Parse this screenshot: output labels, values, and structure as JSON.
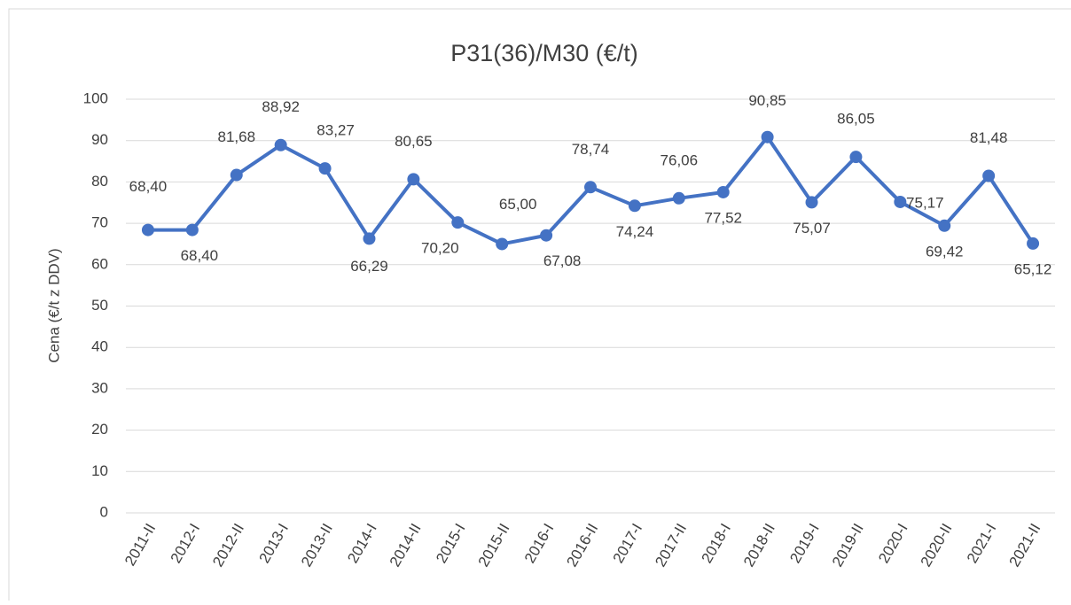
{
  "chart_data": {
    "type": "line",
    "title": "P31(36)/M30 (€/t)",
    "y_label": "Cena (€/t z DDV)",
    "categories": [
      "2011-II",
      "2012-I",
      "2012-II",
      "2013-I",
      "2013-II",
      "2014-I",
      "2014-II",
      "2015-I",
      "2015-II",
      "2016-I",
      "2016-II",
      "2017-I",
      "2017-II",
      "2018-I",
      "2018-II",
      "2019-I",
      "2019-II",
      "2020-I",
      "2020-II",
      "2021-I",
      "2021-II"
    ],
    "series": [
      {
        "name": "P31(36)/M30",
        "color": "#4472c4",
        "values": [
          68.4,
          68.4,
          81.68,
          88.92,
          83.27,
          66.29,
          80.65,
          70.2,
          65.0,
          67.08,
          78.74,
          74.24,
          76.06,
          77.52,
          90.85,
          75.07,
          86.05,
          75.17,
          69.42,
          81.48,
          65.12
        ],
        "value_labels": [
          "68,40",
          "68,40",
          "81,68",
          "88,92",
          "83,27",
          "66,29",
          "80,65",
          "70,20",
          "65,00",
          "67,08",
          "78,74",
          "74,24",
          "76,06",
          "77,52",
          "90,85",
          "75,07",
          "86,05",
          "75,17",
          "69,42",
          "81,48",
          "65,12"
        ]
      }
    ],
    "ylim": [
      0,
      100
    ],
    "yticks": [
      0,
      10,
      20,
      30,
      40,
      50,
      60,
      70,
      80,
      90,
      100
    ],
    "grid": true
  }
}
